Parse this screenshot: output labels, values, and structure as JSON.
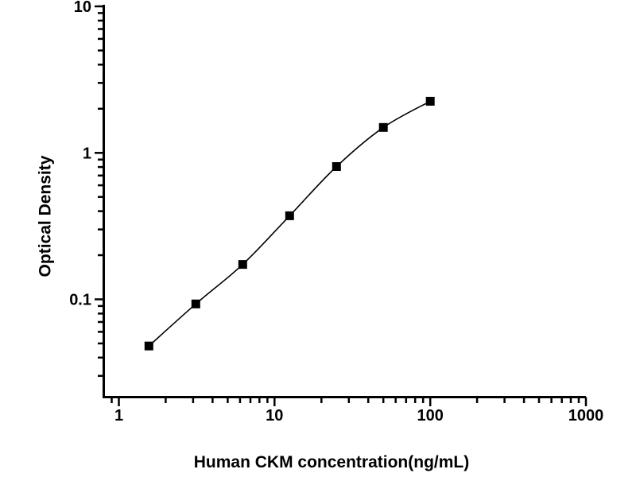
{
  "figure": {
    "background_color": "#ffffff"
  },
  "chart_data": {
    "type": "line",
    "subtype": "elisa-standard-curve",
    "title": "",
    "xlabel": "Human CKM concentration(ng/mL)",
    "ylabel": "Optical Density",
    "x_scale": "log",
    "y_scale": "log",
    "x": [
      1.56,
      3.12,
      6.25,
      12.5,
      25,
      50,
      100
    ],
    "y": [
      0.048,
      0.093,
      0.173,
      0.372,
      0.806,
      1.49,
      2.25
    ],
    "xlim": [
      0.8,
      1000
    ],
    "ylim": [
      0.0215,
      10
    ],
    "x_ticks_major": [
      1,
      10,
      100,
      1000
    ],
    "x_tick_labels": [
      "1",
      "10",
      "100",
      "1000"
    ],
    "y_ticks_major": [
      0.1,
      1,
      10
    ],
    "y_tick_labels": [
      "0.1",
      "1",
      "10"
    ],
    "grid": false,
    "legend": "none",
    "marker": "filled-square",
    "marker_size_px": 11,
    "line_color": "#000000",
    "marker_color": "#000000",
    "axis_color": "#000000",
    "text_color": "#000000"
  }
}
